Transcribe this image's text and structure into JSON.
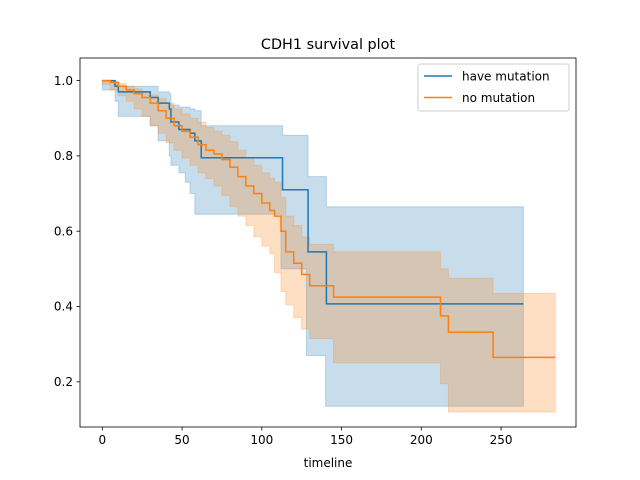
{
  "chart_data": {
    "type": "line",
    "title": "CDH1 survival plot",
    "xlabel": "timeline",
    "ylabel": "",
    "xlim": [
      -14,
      297
    ],
    "ylim": [
      0.08,
      1.06
    ],
    "xticks": [
      0,
      50,
      100,
      150,
      200,
      250
    ],
    "xtick_labels": [
      "0",
      "50",
      "100",
      "150",
      "200",
      "250"
    ],
    "yticks": [
      0.2,
      0.4,
      0.6,
      0.8,
      1.0
    ],
    "ytick_labels": [
      "0.2",
      "0.4",
      "0.6",
      "0.8",
      "1.0"
    ],
    "grid": false,
    "legend_position": "upper right",
    "series": [
      {
        "name": "have mutation",
        "color": "#1f77b4",
        "step": [
          [
            0,
            1.0
          ],
          [
            8,
            0.985
          ],
          [
            10,
            0.97
          ],
          [
            30,
            0.955
          ],
          [
            35,
            0.94
          ],
          [
            42,
            0.925
          ],
          [
            43,
            0.89
          ],
          [
            48,
            0.87
          ],
          [
            55,
            0.86
          ],
          [
            58,
            0.84
          ],
          [
            62,
            0.795
          ],
          [
            112,
            0.795
          ],
          [
            113,
            0.71
          ],
          [
            128,
            0.71
          ],
          [
            129,
            0.545
          ],
          [
            140,
            0.545
          ],
          [
            140.5,
            0.407
          ],
          [
            264,
            0.407
          ]
        ],
        "ci_lower": [
          [
            0,
            1.0
          ],
          [
            8,
            0.975
          ],
          [
            10,
            0.945
          ],
          [
            30,
            0.905
          ],
          [
            35,
            0.88
          ],
          [
            42,
            0.84
          ],
          [
            43,
            0.8
          ],
          [
            48,
            0.775
          ],
          [
            52,
            0.755
          ],
          [
            55,
            0.73
          ],
          [
            58,
            0.7
          ],
          [
            62,
            0.645
          ],
          [
            112,
            0.645
          ],
          [
            113,
            0.5
          ],
          [
            128,
            0.5
          ],
          [
            129,
            0.27
          ],
          [
            140,
            0.27
          ],
          [
            140.5,
            0.135
          ],
          [
            264,
            0.135
          ]
        ],
        "ci_upper": [
          [
            0,
            1.0
          ],
          [
            8,
            0.99
          ],
          [
            10,
            0.985
          ],
          [
            30,
            0.985
          ],
          [
            35,
            0.97
          ],
          [
            42,
            0.965
          ],
          [
            43,
            0.935
          ],
          [
            48,
            0.93
          ],
          [
            55,
            0.925
          ],
          [
            58,
            0.92
          ],
          [
            62,
            0.88
          ],
          [
            112,
            0.88
          ],
          [
            113,
            0.855
          ],
          [
            128,
            0.855
          ],
          [
            129,
            0.745
          ],
          [
            140,
            0.745
          ],
          [
            140.5,
            0.665
          ],
          [
            264,
            0.665
          ]
        ]
      },
      {
        "name": "no mutation",
        "color": "#ff7f0e",
        "step": [
          [
            0,
            1.0
          ],
          [
            5,
            0.995
          ],
          [
            10,
            0.985
          ],
          [
            15,
            0.975
          ],
          [
            20,
            0.965
          ],
          [
            25,
            0.955
          ],
          [
            30,
            0.94
          ],
          [
            35,
            0.92
          ],
          [
            40,
            0.9
          ],
          [
            45,
            0.88
          ],
          [
            50,
            0.865
          ],
          [
            55,
            0.85
          ],
          [
            60,
            0.83
          ],
          [
            65,
            0.815
          ],
          [
            70,
            0.805
          ],
          [
            75,
            0.79
          ],
          [
            80,
            0.77
          ],
          [
            85,
            0.745
          ],
          [
            90,
            0.72
          ],
          [
            95,
            0.7
          ],
          [
            100,
            0.675
          ],
          [
            105,
            0.655
          ],
          [
            108,
            0.64
          ],
          [
            112,
            0.6
          ],
          [
            115,
            0.545
          ],
          [
            120,
            0.515
          ],
          [
            125,
            0.485
          ],
          [
            130,
            0.455
          ],
          [
            145,
            0.425
          ],
          [
            212,
            0.375
          ],
          [
            217,
            0.332
          ],
          [
            245,
            0.265
          ],
          [
            284,
            0.265
          ]
        ],
        "ci_lower": [
          [
            0,
            1.0
          ],
          [
            5,
            0.99
          ],
          [
            10,
            0.975
          ],
          [
            15,
            0.96
          ],
          [
            20,
            0.945
          ],
          [
            25,
            0.925
          ],
          [
            30,
            0.905
          ],
          [
            35,
            0.88
          ],
          [
            40,
            0.86
          ],
          [
            45,
            0.835
          ],
          [
            50,
            0.815
          ],
          [
            55,
            0.795
          ],
          [
            60,
            0.775
          ],
          [
            65,
            0.755
          ],
          [
            70,
            0.74
          ],
          [
            75,
            0.72
          ],
          [
            80,
            0.695
          ],
          [
            85,
            0.665
          ],
          [
            90,
            0.64
          ],
          [
            95,
            0.615
          ],
          [
            100,
            0.585
          ],
          [
            105,
            0.56
          ],
          [
            108,
            0.54
          ],
          [
            112,
            0.49
          ],
          [
            115,
            0.44
          ],
          [
            120,
            0.405
          ],
          [
            125,
            0.37
          ],
          [
            130,
            0.34
          ],
          [
            145,
            0.315
          ],
          [
            212,
            0.25
          ],
          [
            217,
            0.195
          ],
          [
            245,
            0.12
          ],
          [
            284,
            0.12
          ]
        ],
        "ci_upper": [
          [
            0,
            1.0
          ],
          [
            5,
            0.998
          ],
          [
            10,
            0.992
          ],
          [
            15,
            0.985
          ],
          [
            20,
            0.978
          ],
          [
            25,
            0.97
          ],
          [
            30,
            0.962
          ],
          [
            35,
            0.952
          ],
          [
            40,
            0.94
          ],
          [
            45,
            0.925
          ],
          [
            50,
            0.912
          ],
          [
            55,
            0.9
          ],
          [
            60,
            0.89
          ],
          [
            65,
            0.875
          ],
          [
            70,
            0.865
          ],
          [
            75,
            0.855
          ],
          [
            80,
            0.838
          ],
          [
            85,
            0.815
          ],
          [
            90,
            0.795
          ],
          [
            95,
            0.775
          ],
          [
            100,
            0.755
          ],
          [
            105,
            0.74
          ],
          [
            108,
            0.73
          ],
          [
            112,
            0.69
          ],
          [
            115,
            0.64
          ],
          [
            120,
            0.615
          ],
          [
            125,
            0.585
          ],
          [
            130,
            0.565
          ],
          [
            145,
            0.545
          ],
          [
            212,
            0.5
          ],
          [
            217,
            0.475
          ],
          [
            245,
            0.435
          ],
          [
            284,
            0.435
          ]
        ]
      }
    ]
  }
}
